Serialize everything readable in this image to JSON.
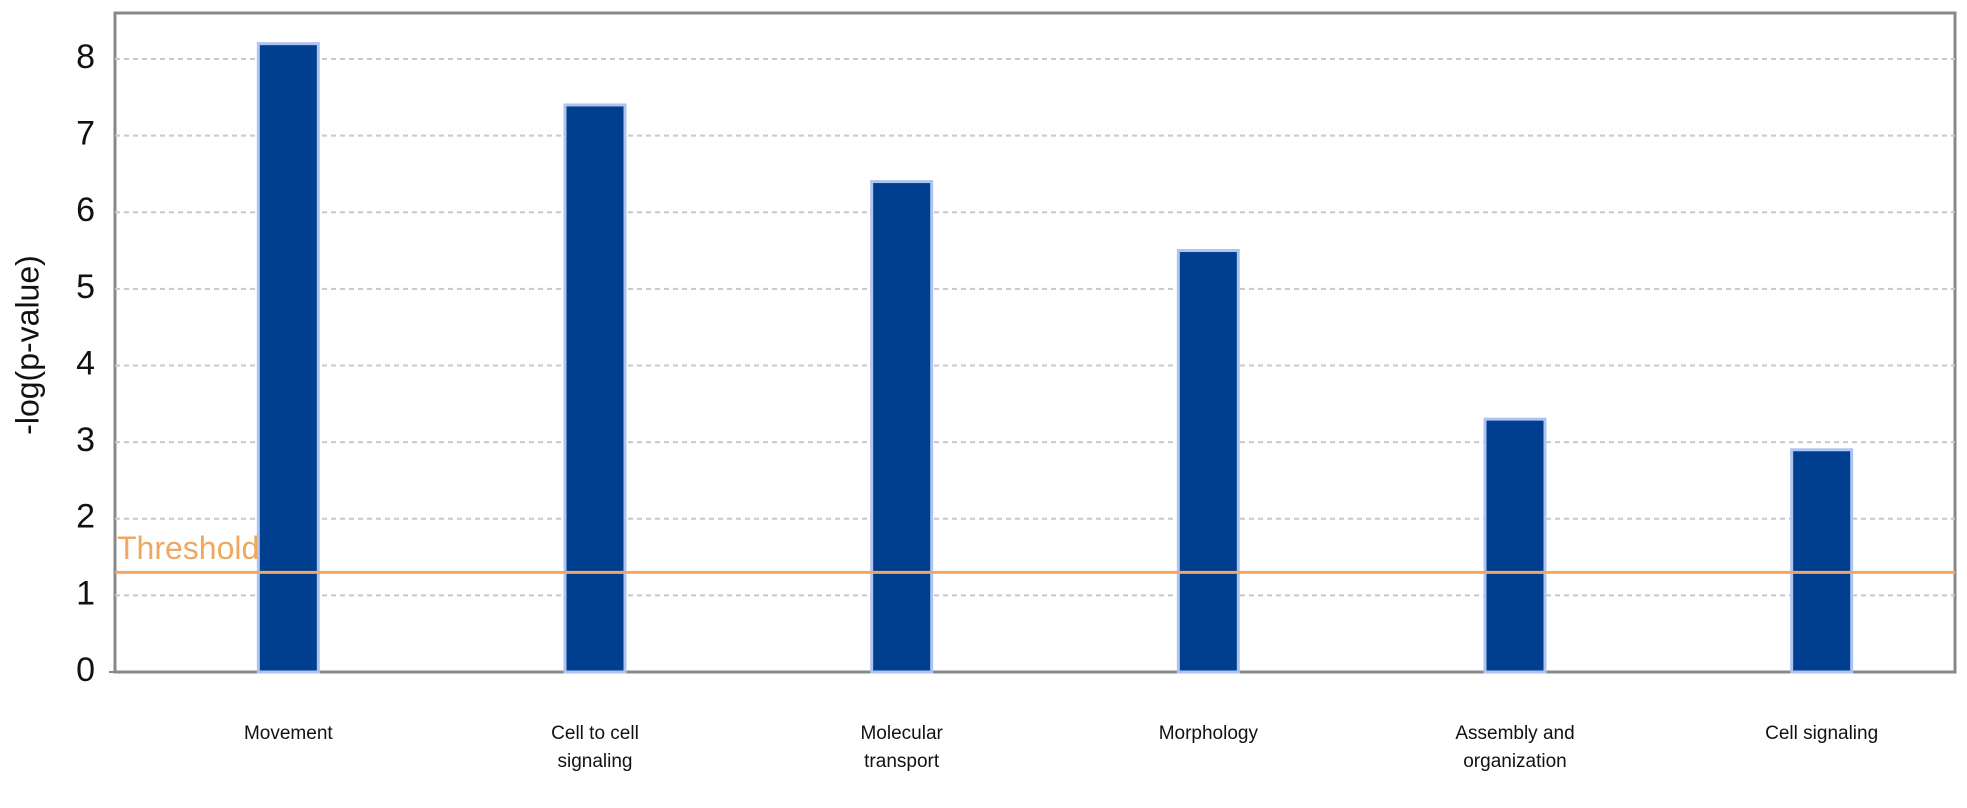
{
  "chart_data": {
    "type": "bar",
    "y_label": "-log(p-value)",
    "categories": [
      "Movement",
      "Cell to cell signaling",
      "Molecular transport",
      "Morphology",
      "Assembly and organization",
      "Cell signaling"
    ],
    "values": [
      8.2,
      7.4,
      6.4,
      5.5,
      3.3,
      2.9
    ],
    "color": "#003f8f",
    "ylim": [
      0,
      8.6
    ],
    "yticks": [
      0,
      1,
      2,
      3,
      4,
      5,
      6,
      7,
      8
    ],
    "grid": true,
    "threshold": {
      "label": "Threshold",
      "value": 1.3,
      "color": "#f0a860"
    }
  }
}
